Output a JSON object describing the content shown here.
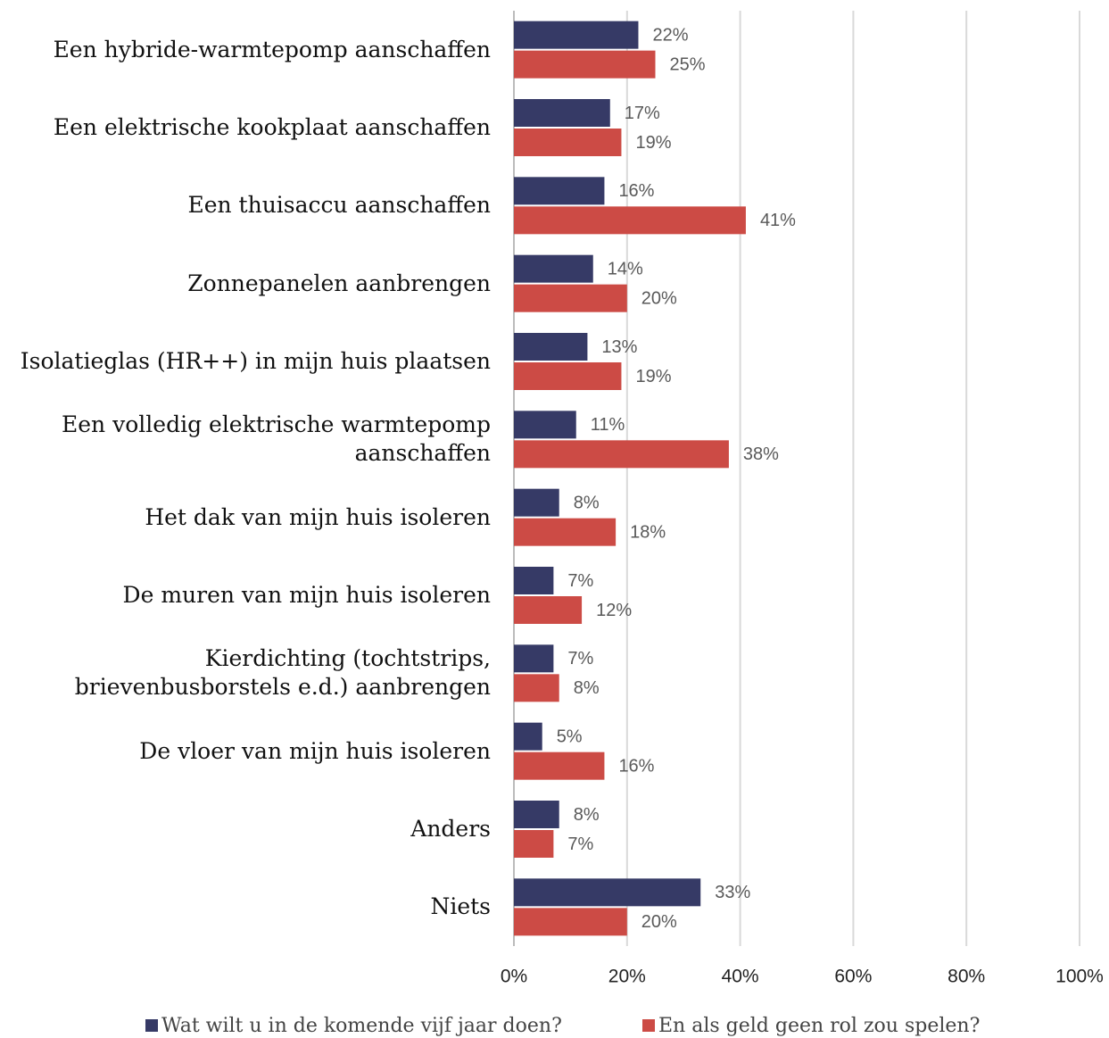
{
  "chart_data": {
    "type": "bar",
    "orientation": "horizontal",
    "categories": [
      "Een hybride-warmtepomp aanschaffen",
      "Een elektrische kookplaat aanschaffen",
      "Een thuisaccu aanschaffen",
      "Zonnepanelen aanbrengen",
      "Isolatieglas (HR++) in mijn huis plaatsen",
      "Een volledig elektrische warmtepomp\naanschaffen",
      "Het dak van mijn huis isoleren",
      "De muren van mijn huis isoleren",
      "Kierdichting (tochtstrips,\nbrievenbusborstels e.d.) aanbrengen",
      "De vloer van mijn huis isoleren",
      "Anders",
      "Niets"
    ],
    "series": [
      {
        "name": "Wat wilt u in de komende vijf jaar doen?",
        "color": "#363a66",
        "values": [
          22,
          17,
          16,
          14,
          13,
          11,
          8,
          7,
          7,
          5,
          8,
          33
        ],
        "value_labels": [
          "22%",
          "17%",
          "16%",
          "14%",
          "13%",
          "11%",
          "8%",
          "7%",
          "7%",
          "5%",
          "8%",
          "33%"
        ]
      },
      {
        "name": "En als geld geen rol zou spelen?",
        "color": "#cc4b45",
        "values": [
          25,
          19,
          41,
          20,
          19,
          38,
          18,
          12,
          8,
          16,
          7,
          20
        ],
        "value_labels": [
          "25%",
          "19%",
          "41%",
          "20%",
          "19%",
          "38%",
          "18%",
          "12%",
          "8%",
          "16%",
          "7%",
          "20%"
        ]
      }
    ],
    "xlim": [
      0,
      100
    ],
    "xticks": [
      {
        "value": 0,
        "label": "0%"
      },
      {
        "value": 20,
        "label": "20%"
      },
      {
        "value": 40,
        "label": "40%"
      },
      {
        "value": 60,
        "label": "60%"
      },
      {
        "value": 80,
        "label": "80%"
      },
      {
        "value": 100,
        "label": "100%"
      }
    ],
    "grid": true
  }
}
